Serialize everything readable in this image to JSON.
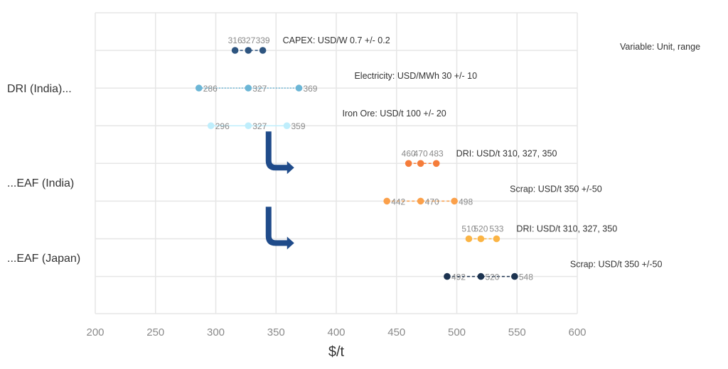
{
  "chart_data": {
    "type": "scatter",
    "subtype": "tornado-range-dot-plot",
    "xlabel": "$/t",
    "xlim": [
      200,
      600
    ],
    "x_ticks": [
      200,
      250,
      300,
      350,
      400,
      450,
      500,
      550,
      600
    ],
    "grid": true,
    "legend_note": "Variable: Unit, range",
    "categories": [
      {
        "label": "DRI (India)...",
        "rows": [
          0,
          1,
          2
        ]
      },
      {
        "label": "...EAF (India)",
        "rows": [
          3,
          4
        ]
      },
      {
        "label": "...EAF (Japan)",
        "rows": [
          5,
          6
        ]
      }
    ],
    "series": [
      {
        "name": "CAPEX: USD/W 0.7 +/- 0.2",
        "values": [
          316,
          327,
          339
        ],
        "labels": [
          "316",
          "327",
          "339"
        ],
        "color": "#2e5580",
        "label_pos": "above",
        "line": "dash"
      },
      {
        "name": "Electricity: USD/MWh 30 +/- 10",
        "values": [
          286,
          327,
          369
        ],
        "labels": [
          "286",
          "327",
          "369"
        ],
        "color": "#6cb6d6",
        "label_pos": "right",
        "line": "dot"
      },
      {
        "name": "Iron Ore: USD/t 100 +/- 20",
        "values": [
          296,
          327,
          359
        ],
        "labels": [
          "296",
          "327",
          "359"
        ],
        "color": "#bfeefc",
        "label_pos": "right",
        "line": "solid"
      },
      {
        "name": "DRI: USD/t 310, 327, 350",
        "values": [
          460,
          470,
          483
        ],
        "labels": [
          "460",
          "470",
          "483"
        ],
        "color": "#f57c3a",
        "label_pos": "above",
        "line": "dash"
      },
      {
        "name": "Scrap: USD/t 350 +/-50",
        "values": [
          442,
          470,
          498
        ],
        "labels": [
          "442",
          "470",
          "498"
        ],
        "color": "#fba04a",
        "label_pos": "right",
        "line": "dash"
      },
      {
        "name": "DRI: USD/t 310, 327, 350",
        "values": [
          510,
          520,
          533
        ],
        "labels": [
          "510",
          "520",
          "533"
        ],
        "color": "#fbb444",
        "label_pos": "above",
        "line": "dash"
      },
      {
        "name": "Scrap: USD/t 350 +/-50",
        "values": [
          492,
          520,
          548
        ],
        "labels": [
          "492",
          "520",
          "548"
        ],
        "color": "#1c3350",
        "label_pos": "right",
        "line": "dash"
      }
    ],
    "arrows": [
      {
        "from_row": 2,
        "to_row": 3,
        "x_value": 345,
        "color": "#1f4b8a"
      },
      {
        "from_row": 4,
        "to_row": 5,
        "x_value": 345,
        "color": "#1f4b8a"
      }
    ]
  }
}
